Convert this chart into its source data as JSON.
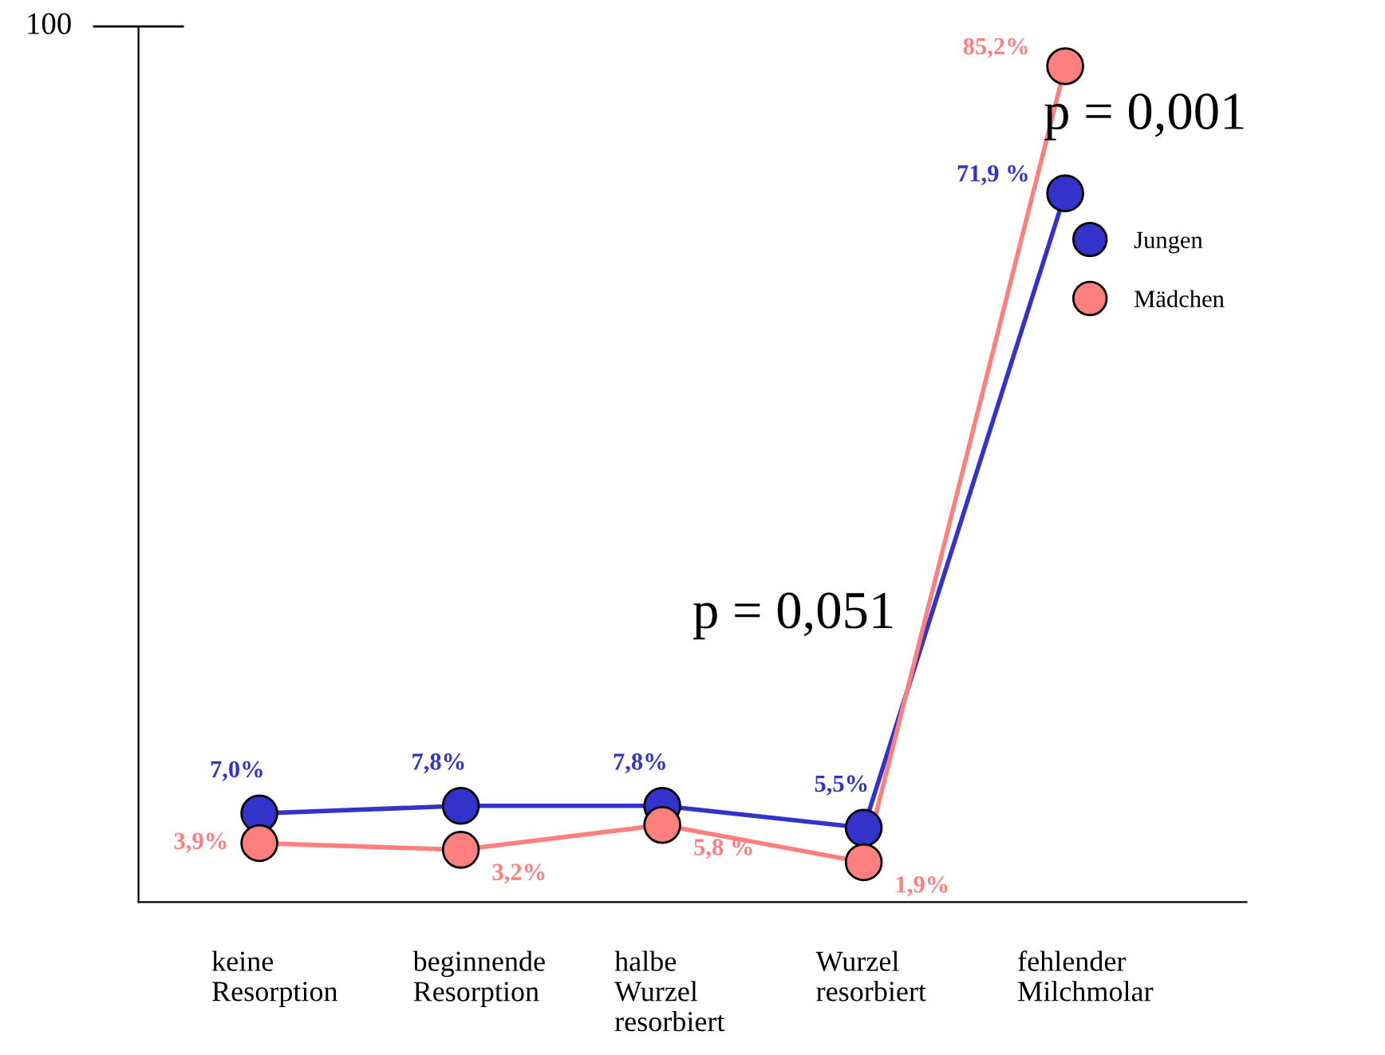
{
  "chart_data": {
    "type": "line",
    "categories": [
      "keine\nResorption",
      "beginnende\nResorption",
      "halbe\nWurzel\nresorbiert",
      "Wurzel\nresorbiert",
      "fehlender\nMilchmolar"
    ],
    "series": [
      {
        "name": "Jungen",
        "color": "#3333cc",
        "values": [
          7.0,
          7.8,
          7.8,
          5.5,
          71.9
        ],
        "value_labels": [
          "7,0%",
          "7,8%",
          "7,8%",
          "5,5%",
          "71,9 %"
        ]
      },
      {
        "name": "Mädchen",
        "color": "#ff7f7f",
        "values": [
          3.9,
          3.2,
          5.8,
          1.9,
          85.2
        ],
        "value_labels": [
          "3,9%",
          "3,2%",
          "5,8 %",
          "1,9%",
          "85,2%"
        ]
      }
    ],
    "annotations": [
      "p = 0,051",
      "p = 0,001",
      "100"
    ],
    "marker": "circle",
    "line_style": "solid",
    "grid": false,
    "legend": "right"
  }
}
